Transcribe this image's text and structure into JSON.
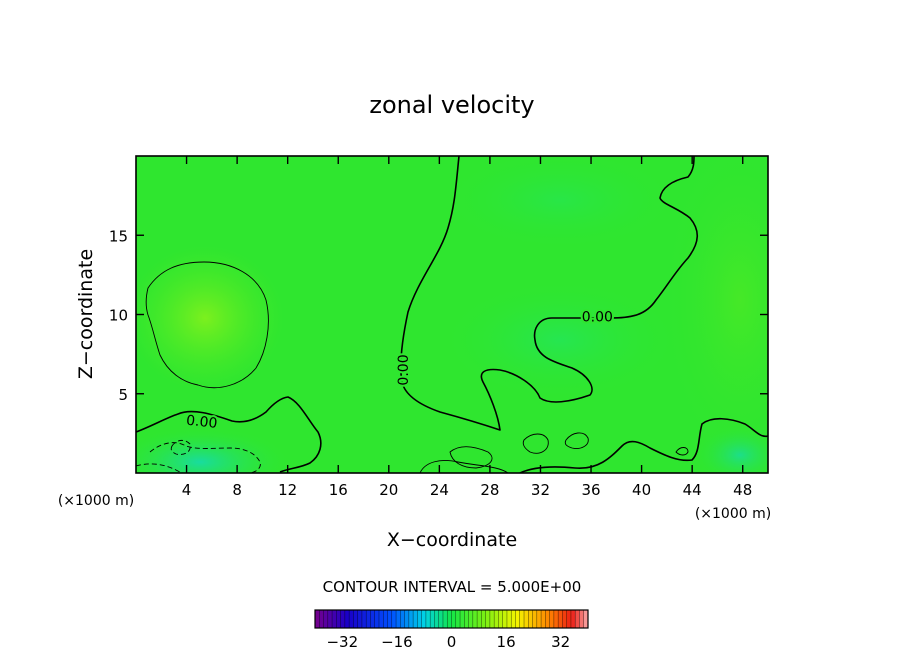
{
  "chart_data": {
    "type": "heatmap",
    "title": "zonal velocity",
    "xlabel": "X−coordinate",
    "ylabel": "Z−coordinate",
    "x_unit_left": "(×1000 m)",
    "x_unit_right": "(×1000 m)",
    "xlim": [
      0,
      50
    ],
    "ylim": [
      0,
      20
    ],
    "x_ticks": [
      4,
      8,
      12,
      16,
      20,
      24,
      28,
      32,
      36,
      40,
      44,
      48
    ],
    "x_tick_labels": [
      "4",
      "8",
      "12",
      "16",
      "20",
      "24",
      "28",
      "32",
      "36",
      "40",
      "44",
      "48"
    ],
    "y_ticks": [
      5,
      10,
      15
    ],
    "y_tick_labels": [
      "5",
      "10",
      "15"
    ],
    "contour_interval_label": "CONTOUR INTERVAL = 5.000E+00",
    "contour_labels": [
      {
        "text": "0.00",
        "x": 5.2,
        "z": 3.2
      },
      {
        "text": "0.00",
        "x": 21.2,
        "z": 6.5
      },
      {
        "text": "0.00",
        "x": 36.5,
        "z": 9.8
      }
    ],
    "colorbar": {
      "range": [
        -40,
        40
      ],
      "ticks": [
        -32,
        -16,
        0,
        16,
        32
      ],
      "tick_labels": [
        "−32",
        "−16",
        "0",
        "16",
        "32"
      ]
    },
    "background_color": "#2fe62f",
    "grid": false
  }
}
